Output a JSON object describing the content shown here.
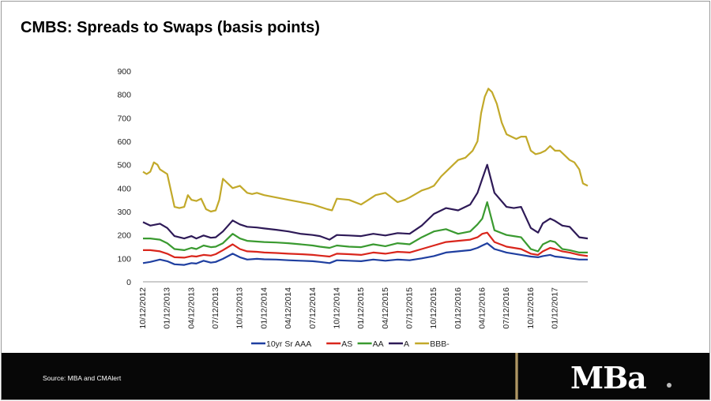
{
  "slide": {
    "title": "CMBS: Spreads to Swaps (basis points)",
    "source": "Source: MBA and CMAlert",
    "logo": "MBa"
  },
  "chart_data": {
    "type": "line",
    "title": "CMBS: Spreads to Swaps (basis points)",
    "ylim": [
      0,
      900
    ],
    "yticks": [
      0,
      100,
      200,
      300,
      400,
      500,
      600,
      700,
      800,
      900
    ],
    "x_ticks": [
      "10/12/2012",
      "01/12/2013",
      "04/12/2013",
      "07/12/2013",
      "10/12/2013",
      "01/12/2014",
      "04/12/2014",
      "07/12/2014",
      "10/12/2014",
      "01/12/2015",
      "04/12/2015",
      "07/12/2015",
      "10/12/2015",
      "01/12/2016",
      "04/12/2016",
      "07/12/2016",
      "10/12/2016",
      "01/12/2017"
    ],
    "x_range": [
      0,
      18.35
    ],
    "legend_position": "bottom",
    "series": [
      {
        "name": "10yr Sr AAA",
        "color": "#1f3fa0",
        "x": [
          0,
          0.3,
          0.7,
          1,
          1.3,
          1.7,
          2,
          2.2,
          2.5,
          2.8,
          3,
          3.3,
          3.7,
          4,
          4.3,
          4.7,
          5,
          5.5,
          6,
          6.5,
          7,
          7.3,
          7.7,
          8,
          8.5,
          9,
          9.5,
          10,
          10.5,
          11,
          11.5,
          12,
          12.5,
          13,
          13.5,
          13.8,
          14,
          14.2,
          14.5,
          15,
          15.3,
          15.6,
          16,
          16.3,
          16.5,
          16.8,
          17,
          17.3,
          17.6,
          18,
          18.35
        ],
        "y": [
          80,
          85,
          95,
          88,
          75,
          72,
          80,
          78,
          90,
          82,
          85,
          98,
          120,
          105,
          95,
          98,
          96,
          95,
          92,
          90,
          88,
          85,
          80,
          92,
          90,
          88,
          95,
          90,
          95,
          92,
          100,
          110,
          125,
          130,
          135,
          145,
          155,
          165,
          140,
          125,
          120,
          115,
          108,
          105,
          110,
          115,
          108,
          105,
          100,
          95,
          95
        ]
      },
      {
        "name": "AS",
        "color": "#d9261c",
        "x": [
          0,
          0.3,
          0.7,
          1,
          1.3,
          1.7,
          2,
          2.2,
          2.5,
          2.8,
          3,
          3.3,
          3.7,
          4,
          4.3,
          4.7,
          5,
          5.5,
          6,
          6.5,
          7,
          7.3,
          7.7,
          8,
          8.5,
          9,
          9.5,
          10,
          10.5,
          11,
          11.5,
          12,
          12.5,
          13,
          13.5,
          13.8,
          14,
          14.2,
          14.5,
          15,
          15.3,
          15.6,
          16,
          16.3,
          16.5,
          16.8,
          17,
          17.3,
          17.6,
          18,
          18.35
        ],
        "y": [
          135,
          135,
          130,
          120,
          105,
          103,
          110,
          108,
          115,
          112,
          118,
          135,
          160,
          140,
          130,
          128,
          125,
          123,
          120,
          118,
          115,
          112,
          108,
          120,
          118,
          115,
          125,
          120,
          128,
          125,
          140,
          155,
          170,
          175,
          180,
          190,
          205,
          210,
          170,
          150,
          145,
          140,
          120,
          115,
          130,
          145,
          140,
          130,
          125,
          115,
          110
        ]
      },
      {
        "name": "AA",
        "color": "#3a9a30",
        "x": [
          0,
          0.3,
          0.7,
          1,
          1.3,
          1.7,
          2,
          2.2,
          2.5,
          2.8,
          3,
          3.3,
          3.7,
          4,
          4.3,
          4.7,
          5,
          5.5,
          6,
          6.5,
          7,
          7.3,
          7.7,
          8,
          8.5,
          9,
          9.5,
          10,
          10.5,
          11,
          11.5,
          12,
          12.5,
          13,
          13.5,
          13.8,
          14,
          14.2,
          14.5,
          15,
          15.3,
          15.6,
          16,
          16.3,
          16.5,
          16.8,
          17,
          17.3,
          17.6,
          18,
          18.35
        ],
        "y": [
          185,
          185,
          180,
          165,
          140,
          135,
          145,
          140,
          155,
          148,
          150,
          165,
          205,
          185,
          175,
          172,
          170,
          168,
          165,
          160,
          155,
          150,
          145,
          155,
          150,
          148,
          160,
          152,
          165,
          160,
          190,
          215,
          225,
          205,
          215,
          245,
          270,
          340,
          220,
          200,
          195,
          190,
          140,
          130,
          160,
          175,
          170,
          140,
          135,
          125,
          125
        ]
      },
      {
        "name": "A",
        "color": "#2e1a57",
        "x": [
          0,
          0.3,
          0.7,
          1,
          1.3,
          1.7,
          2,
          2.2,
          2.5,
          2.8,
          3,
          3.3,
          3.7,
          4,
          4.3,
          4.7,
          5,
          5.5,
          6,
          6.5,
          7,
          7.3,
          7.7,
          8,
          8.5,
          9,
          9.5,
          10,
          10.5,
          11,
          11.5,
          12,
          12.5,
          13,
          13.5,
          13.8,
          14,
          14.2,
          14.5,
          15,
          15.3,
          15.6,
          16,
          16.3,
          16.5,
          16.8,
          17,
          17.3,
          17.6,
          18,
          18.35
        ],
        "y": [
          255,
          240,
          248,
          230,
          195,
          185,
          195,
          185,
          198,
          188,
          190,
          215,
          262,
          245,
          235,
          232,
          228,
          222,
          215,
          205,
          200,
          195,
          180,
          200,
          198,
          195,
          205,
          198,
          208,
          205,
          240,
          290,
          315,
          305,
          330,
          380,
          440,
          500,
          380,
          320,
          315,
          320,
          230,
          210,
          250,
          270,
          260,
          240,
          235,
          190,
          185
        ]
      },
      {
        "name": "BBB-",
        "color": "#c2a92a",
        "x": [
          0,
          0.15,
          0.3,
          0.45,
          0.6,
          0.7,
          0.85,
          1,
          1.3,
          1.5,
          1.7,
          1.85,
          2,
          2.2,
          2.4,
          2.6,
          2.8,
          3,
          3.15,
          3.3,
          3.5,
          3.7,
          4,
          4.3,
          4.5,
          4.7,
          5,
          5.5,
          6,
          6.5,
          7,
          7.3,
          7.6,
          7.8,
          8,
          8.5,
          9,
          9.3,
          9.6,
          10,
          10.5,
          10.8,
          11,
          11.5,
          11.8,
          12,
          12.3,
          12.6,
          13,
          13.3,
          13.6,
          13.8,
          13.95,
          14.1,
          14.25,
          14.4,
          14.6,
          14.8,
          15,
          15.2,
          15.4,
          15.6,
          15.8,
          16,
          16.2,
          16.4,
          16.6,
          16.8,
          17,
          17.2,
          17.4,
          17.6,
          17.8,
          18,
          18.15,
          18.35
        ],
        "y": [
          470,
          460,
          470,
          510,
          500,
          480,
          470,
          460,
          320,
          315,
          320,
          370,
          350,
          345,
          355,
          310,
          300,
          305,
          350,
          440,
          420,
          400,
          410,
          380,
          375,
          380,
          370,
          360,
          350,
          340,
          330,
          320,
          310,
          305,
          355,
          350,
          330,
          350,
          370,
          380,
          340,
          350,
          360,
          390,
          400,
          410,
          450,
          480,
          520,
          530,
          560,
          600,
          720,
          790,
          825,
          810,
          760,
          680,
          630,
          620,
          610,
          620,
          620,
          560,
          545,
          550,
          560,
          580,
          560,
          560,
          540,
          520,
          510,
          480,
          420,
          410
        ]
      }
    ]
  }
}
